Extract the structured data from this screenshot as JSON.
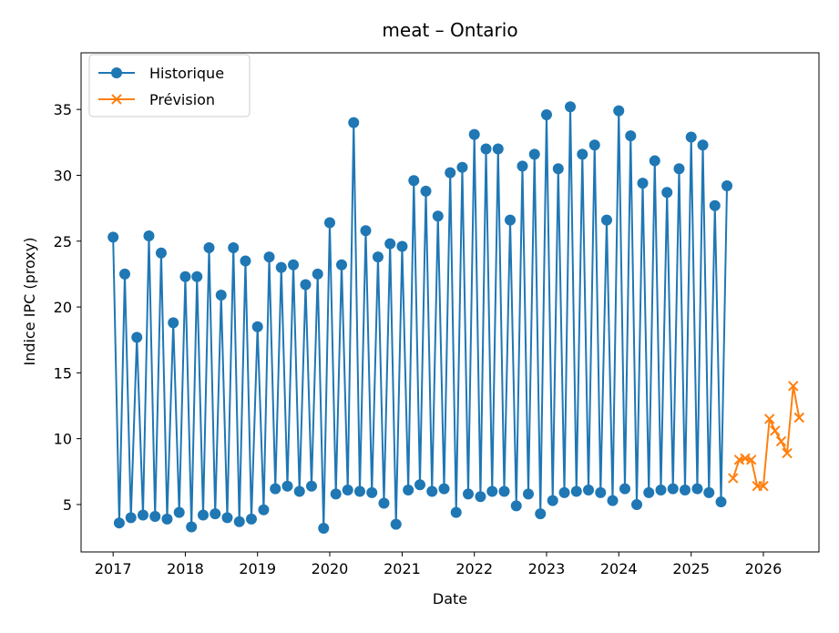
{
  "chart_data": {
    "type": "line",
    "title": "meat – Ontario",
    "xlabel": "Date",
    "ylabel": "Indice IPC (proxy)",
    "xlim": [
      "2016-07-23",
      "2026-10-09"
    ],
    "ylim": [
      1.4,
      39.3
    ],
    "x_ticks": [
      "2017",
      "2018",
      "2019",
      "2020",
      "2021",
      "2022",
      "2023",
      "2024",
      "2025",
      "2026"
    ],
    "y_ticks": [
      5,
      10,
      15,
      20,
      25,
      30,
      35
    ],
    "grid": false,
    "legend": {
      "location": "upper left",
      "entries": [
        "Historique",
        "Prévision"
      ]
    },
    "series": [
      {
        "name": "Historique",
        "color": "#1f77b4",
        "marker": "circle",
        "x": [
          "2017-01-01",
          "2017-02-01",
          "2017-03-01",
          "2017-04-01",
          "2017-05-01",
          "2017-06-01",
          "2017-07-01",
          "2017-08-01",
          "2017-09-01",
          "2017-10-01",
          "2017-11-01",
          "2017-12-01",
          "2018-01-01",
          "2018-02-01",
          "2018-03-01",
          "2018-04-01",
          "2018-05-01",
          "2018-06-01",
          "2018-07-01",
          "2018-08-01",
          "2018-09-01",
          "2018-10-01",
          "2018-11-01",
          "2018-12-01",
          "2019-01-01",
          "2019-02-01",
          "2019-03-01",
          "2019-04-01",
          "2019-05-01",
          "2019-06-01",
          "2019-07-01",
          "2019-08-01",
          "2019-09-01",
          "2019-10-01",
          "2019-11-01",
          "2019-12-01",
          "2020-01-01",
          "2020-02-01",
          "2020-03-01",
          "2020-04-01",
          "2020-05-01",
          "2020-06-01",
          "2020-07-01",
          "2020-08-01",
          "2020-09-01",
          "2020-10-01",
          "2020-11-01",
          "2020-12-01",
          "2021-01-01",
          "2021-02-01",
          "2021-03-01",
          "2021-04-01",
          "2021-05-01",
          "2021-06-01",
          "2021-07-01",
          "2021-08-01",
          "2021-09-01",
          "2021-10-01",
          "2021-11-01",
          "2021-12-01",
          "2022-01-01",
          "2022-02-01",
          "2022-03-01",
          "2022-04-01",
          "2022-05-01",
          "2022-06-01",
          "2022-07-01",
          "2022-08-01",
          "2022-09-01",
          "2022-10-01",
          "2022-11-01",
          "2022-12-01",
          "2023-01-01",
          "2023-02-01",
          "2023-03-01",
          "2023-04-01",
          "2023-05-01",
          "2023-06-01",
          "2023-07-01",
          "2023-08-01",
          "2023-09-01",
          "2023-10-01",
          "2023-11-01",
          "2023-12-01",
          "2024-01-01",
          "2024-02-01",
          "2024-03-01",
          "2024-04-01",
          "2024-05-01",
          "2024-06-01",
          "2024-07-01",
          "2024-08-01",
          "2024-09-01",
          "2024-10-01",
          "2024-11-01",
          "2024-12-01",
          "2025-01-01",
          "2025-02-01",
          "2025-03-01",
          "2025-04-01",
          "2025-05-01",
          "2025-06-01",
          "2025-07-01"
        ],
        "y": [
          25.3,
          3.6,
          22.5,
          4.0,
          17.7,
          4.2,
          25.4,
          4.1,
          24.1,
          3.9,
          18.8,
          4.4,
          22.3,
          3.3,
          22.3,
          4.2,
          24.5,
          4.3,
          20.9,
          4.0,
          24.5,
          3.7,
          23.5,
          3.9,
          18.5,
          4.6,
          23.8,
          6.2,
          23.0,
          6.4,
          23.2,
          6.0,
          21.7,
          6.4,
          22.5,
          3.2,
          26.4,
          5.8,
          23.2,
          6.1,
          34.0,
          6.0,
          25.8,
          5.9,
          23.8,
          5.1,
          24.8,
          3.5,
          24.6,
          6.1,
          29.6,
          6.5,
          28.8,
          6.0,
          26.9,
          6.2,
          30.2,
          4.4,
          30.6,
          5.8,
          33.1,
          5.6,
          32.0,
          6.0,
          32.0,
          6.0,
          26.6,
          4.9,
          30.7,
          5.8,
          31.6,
          4.3,
          34.6,
          5.3,
          30.5,
          5.9,
          35.2,
          6.0,
          31.6,
          6.1,
          32.3,
          5.9,
          26.6,
          5.3,
          34.9,
          6.2,
          33.0,
          5.0,
          29.4,
          5.9,
          31.1,
          6.1,
          28.7,
          6.2,
          30.5,
          6.1,
          32.9,
          6.2,
          32.3,
          5.9,
          27.7,
          5.2,
          29.2
        ]
      },
      {
        "name": "Prévision",
        "color": "#ff7f0e",
        "marker": "x",
        "x": [
          "2025-08-01",
          "2025-09-01",
          "2025-10-01",
          "2025-11-01",
          "2025-12-01",
          "2026-01-01",
          "2026-02-01",
          "2026-03-01",
          "2026-04-01",
          "2026-05-01",
          "2026-06-01",
          "2026-07-01"
        ],
        "y": [
          7.0,
          8.4,
          8.5,
          8.4,
          6.4,
          6.4,
          11.5,
          10.6,
          9.8,
          8.9,
          14.0,
          11.6
        ]
      }
    ]
  }
}
